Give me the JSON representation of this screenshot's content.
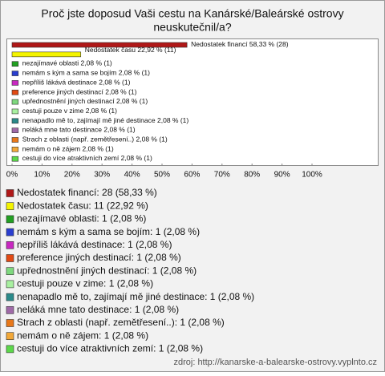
{
  "chart_data": {
    "type": "bar",
    "orientation": "horizontal",
    "title": [
      "Proč jste doposud Vaši cestu na Kanárské/Baleárské ostrovy",
      "neuskutečnil/a?"
    ],
    "categories": [
      "Nedostatek financí",
      "Nedostatek času",
      "nezajímavé oblasti",
      "nemám s kým a sama se bojím",
      "nepříliš láká­vá destinace",
      "preference jiných destinací",
      "upřednostnění jiných destinací",
      "cestuji pouze v zime",
      "nenapadlo mě to, zajímají mě jiné destinace",
      "neláká mne tato destinace",
      "Strach z oblasti (např. zemětřesení..)",
      "nemám o ně zájem",
      "cestuji do více atraktivních zemí"
    ],
    "values": [
      58.33,
      22.92,
      2.08,
      2.08,
      2.08,
      2.08,
      2.08,
      2.08,
      2.08,
      2.08,
      2.08,
      2.08,
      2.08
    ],
    "value_labels": [
      "58,33 % (28)",
      "22,92 % (11)",
      "2,08 % (1)",
      "2,08 % (1)",
      "2,08 % (1)",
      "2,08 % (1)",
      "2,08 % (1)",
      "2,08 % (1)",
      "2,08 % (1)",
      "2,08 % (1)",
      "2,08 % (1)",
      "2,08 % (1)",
      "2,08 % (1)"
    ],
    "legend_labels": [
      "Nedostatek financí: 28 (58,33 %)",
      "Nedostatek času: 11 (22,92 %)",
      "nezajímavé oblasti: 1 (2,08 %)",
      "nemám s kým a sama se bojím: 1 (2,08 %)",
      "nepříliš láká­vá destinace: 1 (2,08 %)",
      "preference jiných destinací: 1 (2,08 %)",
      "upřednostnění jiných destinací: 1 (2,08 %)",
      "cestuji pouze v zime: 1 (2,08 %)",
      "nenapadlo mě to, zajímají mě jiné destinace: 1 (2,08 %)",
      "neláká mne tato destinace: 1 (2,08 %)",
      "Strach z oblasti (např. zemětřesení..): 1 (2,08 %)",
      "nemám o ně zájem: 1 (2,08 %)",
      "cestuji do více atraktivních zemí: 1 (2,08 %)"
    ],
    "colors": [
      "#b01818",
      "#f4f400",
      "#22a022",
      "#2a3ed0",
      "#c828c0",
      "#e24a14",
      "#7ed87e",
      "#a8f0a0",
      "#2a8a8a",
      "#a06aa8",
      "#e8781a",
      "#f2a838",
      "#5cd84a"
    ],
    "xlim": [
      0,
      100
    ],
    "xticks": [
      {
        "value": 0,
        "label": "0%"
      },
      {
        "value": 10,
        "label": "10%"
      },
      {
        "value": 20,
        "label": "20%"
      },
      {
        "value": 30,
        "label": "30%"
      },
      {
        "value": 40,
        "label": "40%"
      },
      {
        "value": 50,
        "label": "50%"
      },
      {
        "value": 60,
        "label": "60%"
      },
      {
        "value": 70,
        "label": "70%"
      },
      {
        "value": 80,
        "label": "80%"
      },
      {
        "value": 90,
        "label": "90%"
      },
      {
        "value": 100,
        "label": "100%"
      }
    ],
    "grid": false,
    "source": "zdroj: http://kanarske-a-balearske-ostrovy.vyplnto.cz"
  }
}
